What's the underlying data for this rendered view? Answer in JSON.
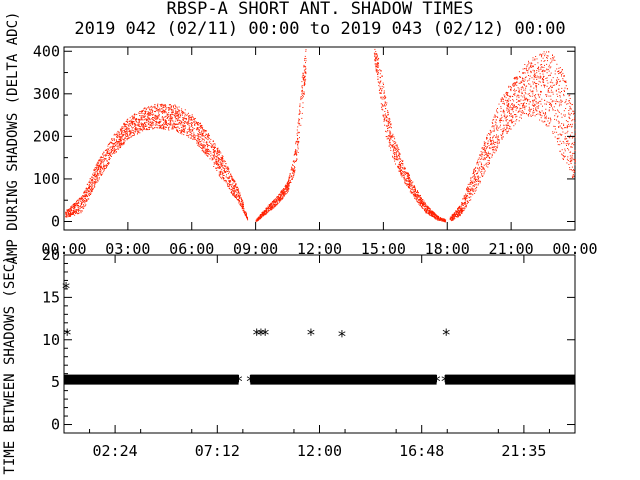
{
  "colors": {
    "background": "#ffffff",
    "axes": "#000000",
    "top_series": "#ff2000",
    "bottom_series": "#000000"
  },
  "chart_data": [
    {
      "type": "scatter",
      "title": "RBSP-A SHORT ANT. SHADOW TIMES",
      "subtitle": "2019 042 (02/11) 00:00 to 2019 043 (02/12) 00:00",
      "xlabel": "",
      "ylabel": "AMP DURING SHADOWS (DELTA ADC)",
      "xlim": [
        0,
        24
      ],
      "ylim": [
        -20,
        410
      ],
      "x_tick_labels": [
        "00:00",
        "03:00",
        "06:00",
        "09:00",
        "12:00",
        "15:00",
        "18:00",
        "21:00",
        "00:00"
      ],
      "y_tick_labels": [
        "0",
        "100",
        "200",
        "300",
        "400"
      ],
      "grid": false,
      "series": [
        {
          "color": "#ff2000",
          "marker": "dot",
          "segments": [
            {
              "x": [
                0.05,
                0.8,
                1.5,
                2.25,
                3.0,
                3.75,
                4.5,
                5.25,
                6.0,
                6.75,
                7.5,
                8.25,
                8.6
              ],
              "y_low": [
                10,
                20,
                90,
                150,
                195,
                215,
                220,
                212,
                195,
                150,
                90,
                40,
                5
              ],
              "y_high": [
                25,
                60,
                135,
                200,
                245,
                268,
                280,
                275,
                255,
                210,
                150,
                70,
                10
              ]
            },
            {
              "x": [
                9.0,
                9.5,
                10.0,
                10.5,
                10.8,
                11.0,
                11.2,
                11.35
              ],
              "y_low": [
                0,
                20,
                40,
                70,
                110,
                170,
                260,
                350
              ],
              "y_high": [
                5,
                35,
                60,
                95,
                160,
                250,
                360,
                410
              ]
            },
            {
              "x": [
                14.55,
                14.8,
                15.1,
                15.5,
                16.0,
                16.5,
                17.0,
                17.5,
                17.9
              ],
              "y_low": [
                380,
                300,
                200,
                140,
                90,
                50,
                20,
                5,
                0
              ],
              "y_high": [
                410,
                380,
                290,
                200,
                130,
                80,
                40,
                15,
                5
              ]
            },
            {
              "x": [
                18.1,
                18.6,
                19.2,
                19.8,
                20.4,
                21.0,
                21.6,
                22.2,
                22.8,
                23.4,
                24.0
              ],
              "y_low": [
                0,
                15,
                60,
                120,
                180,
                220,
                250,
                245,
                215,
                150,
                90
              ],
              "y_high": [
                10,
                40,
                120,
                200,
                280,
                330,
                370,
                395,
                405,
                360,
                260
              ]
            }
          ]
        }
      ]
    },
    {
      "type": "scatter",
      "title": "",
      "xlabel": "",
      "ylabel": "TIME BETWEEN SHADOWS (SEC)",
      "xlim": [
        0,
        24
      ],
      "ylim": [
        -1,
        20
      ],
      "x_tick_labels": [
        "02:24",
        "07:12",
        "12:00",
        "16:48",
        "21:35"
      ],
      "y_tick_labels": [
        "0",
        "5",
        "10",
        "15",
        "20"
      ],
      "grid": false,
      "series": [
        {
          "color": "#000000",
          "marker": "asterisk",
          "band": {
            "y": 5.3,
            "x_ranges": [
              [
                0,
                8.2
              ],
              [
                8.75,
                17.5
              ],
              [
                17.9,
                24.0
              ]
            ]
          },
          "points": [
            {
              "x": 0.1,
              "y": 16.3
            },
            {
              "x": 0.15,
              "y": 10.8
            },
            {
              "x": 8.2,
              "y": 5.3
            },
            {
              "x": 8.75,
              "y": 5.3
            },
            {
              "x": 9.05,
              "y": 10.8
            },
            {
              "x": 9.25,
              "y": 10.8
            },
            {
              "x": 9.45,
              "y": 10.8
            },
            {
              "x": 11.6,
              "y": 10.8
            },
            {
              "x": 13.05,
              "y": 10.6
            },
            {
              "x": 17.5,
              "y": 5.3
            },
            {
              "x": 17.9,
              "y": 5.3
            },
            {
              "x": 17.95,
              "y": 10.8
            }
          ]
        }
      ]
    }
  ]
}
